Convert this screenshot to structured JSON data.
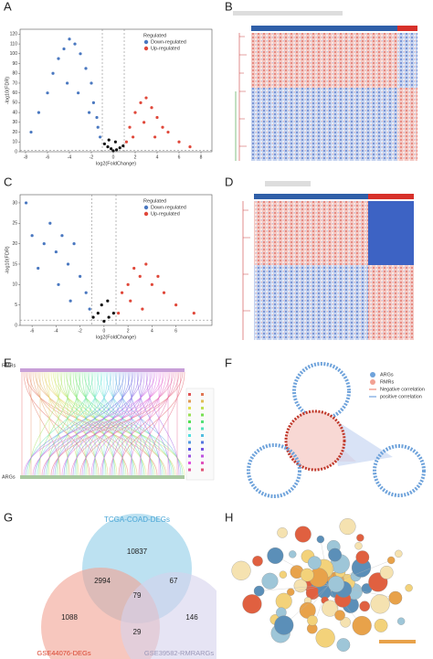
{
  "panel_labels": [
    "A",
    "B",
    "C",
    "D",
    "E",
    "F",
    "G",
    "H"
  ],
  "chart_data": [
    {
      "type": "scatter",
      "xlabel": "log2(FoldChange)",
      "ylabel": "-log10(FDR)",
      "legend_title": "Regulated",
      "xlim": [
        -8.5,
        9
      ],
      "xticks": [
        -8,
        -6,
        -4,
        -2,
        0,
        2,
        4,
        6,
        8
      ],
      "ylim": [
        0,
        125
      ],
      "yticks": [
        0,
        10,
        20,
        30,
        40,
        50,
        60,
        70,
        80,
        90,
        100,
        110,
        120
      ],
      "vlines": [
        -1,
        1
      ],
      "hline": 1.3,
      "series": [
        {
          "name": "Down-regulated",
          "color": "#4a78c0",
          "x": [
            -7.5,
            -6.8,
            -6,
            -5.5,
            -5,
            -4.5,
            -4,
            -3.5,
            -3,
            -2.5,
            -2,
            -1.8,
            -1.5,
            -1.2,
            -3.2,
            -4.2,
            -2.2,
            -1.4
          ],
          "values": [
            20,
            40,
            60,
            80,
            95,
            105,
            115,
            110,
            100,
            85,
            70,
            50,
            35,
            15,
            60,
            70,
            40,
            25
          ]
        },
        {
          "name": "Up-regulated",
          "color": "#e0483a",
          "x": [
            1.2,
            1.5,
            2,
            2.5,
            3,
            3.5,
            4,
            4.5,
            5,
            6,
            7,
            1.8,
            2.8,
            3.8
          ],
          "values": [
            10,
            25,
            40,
            50,
            55,
            45,
            35,
            25,
            20,
            10,
            5,
            15,
            30,
            15
          ]
        },
        {
          "color": "#111111",
          "x": [
            -0.8,
            -0.5,
            -0.2,
            0,
            0.3,
            0.6,
            0.9,
            -0.4,
            0.2
          ],
          "values": [
            8,
            5,
            3,
            1,
            2,
            4,
            6,
            12,
            10
          ]
        }
      ]
    },
    {
      "type": "scatter",
      "xlabel": "log2(FoldChange)",
      "ylabel": "-log10(FDR)",
      "legend_title": "Regulated",
      "xlim": [
        -7,
        9
      ],
      "xticks": [
        -6,
        -4,
        -2,
        0,
        2,
        4,
        6
      ],
      "ylim": [
        0,
        32
      ],
      "yticks": [
        0,
        5,
        10,
        15,
        20,
        25,
        30
      ],
      "vlines": [
        -1,
        1
      ],
      "hline": 1.3,
      "series": [
        {
          "name": "Down-regulated",
          "color": "#4a78c0",
          "x": [
            -6.5,
            -6,
            -5,
            -4.5,
            -4,
            -3.5,
            -3,
            -2.5,
            -2,
            -1.5,
            -1.2,
            -3.8,
            -2.8,
            -5.5
          ],
          "values": [
            30,
            22,
            20,
            25,
            18,
            22,
            15,
            20,
            12,
            8,
            4,
            10,
            6,
            14
          ]
        },
        {
          "name": "Up-regulated",
          "color": "#e0483a",
          "x": [
            1.2,
            1.5,
            2,
            2.5,
            3,
            3.5,
            4,
            4.5,
            5,
            6,
            7.5,
            2.2,
            3.2
          ],
          "values": [
            3,
            8,
            10,
            14,
            12,
            15,
            10,
            12,
            8,
            5,
            3,
            6,
            4
          ]
        },
        {
          "color": "#111111",
          "x": [
            -0.9,
            -0.5,
            0,
            0.4,
            0.8,
            -0.2,
            0.3
          ],
          "values": [
            2,
            3,
            1,
            2,
            3,
            5,
            6
          ]
        }
      ]
    }
  ],
  "sankey": {
    "top_label": "RMRs",
    "bottom_label": "ARGs"
  },
  "network_legend": [
    "ARGs",
    "RMRs",
    "Negative correlation",
    "positive correlation"
  ],
  "venn": {
    "sets": [
      "TCGA-COAD-DEGs",
      "GSE44076-DEGs",
      "GSE39582-RMRARGs"
    ],
    "counts": {
      "top_only": "10837",
      "top_left": "2994",
      "top_right": "67",
      "all": "79",
      "left_only": "1088",
      "left_right": "29",
      "right_only": "146"
    }
  }
}
